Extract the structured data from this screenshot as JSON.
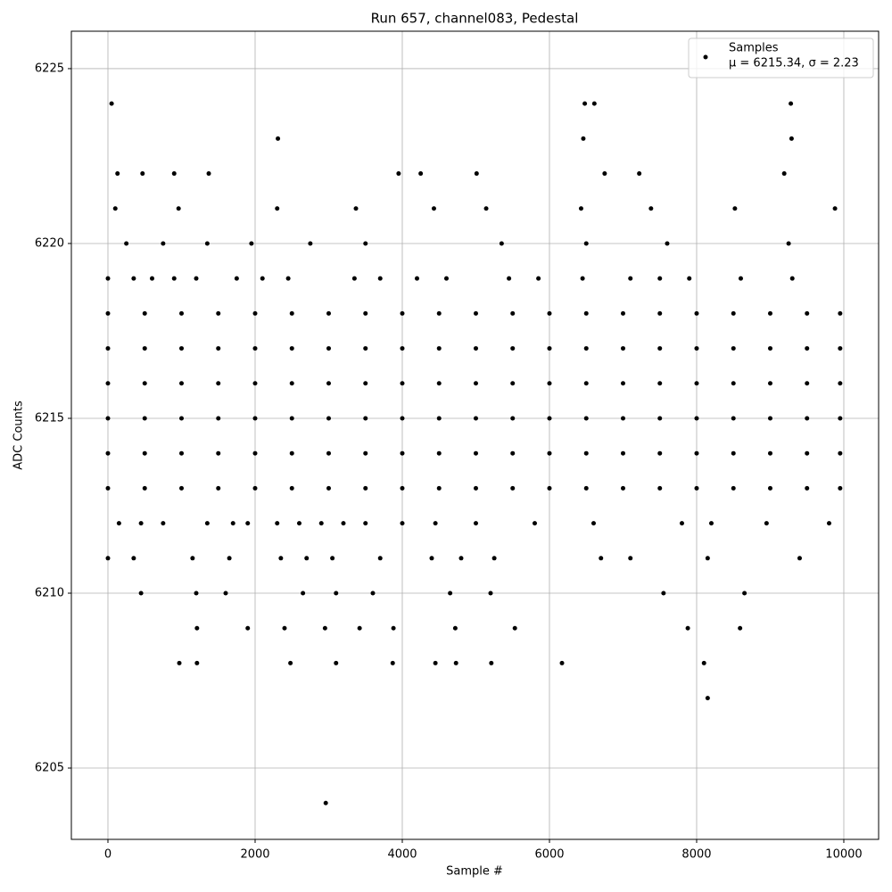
{
  "chart_data": {
    "type": "scatter",
    "title": "Run 657, channel083, Pedestal",
    "x_label": "Sample #",
    "y_label": "ADC Counts",
    "xlim": [
      -497,
      10473
    ],
    "ylim": [
      6202.96,
      6226.07
    ],
    "xticks": [
      0,
      2000,
      4000,
      6000,
      8000,
      10000
    ],
    "yticks": [
      6205,
      6210,
      6215,
      6220,
      6225
    ],
    "grid": true,
    "legend_position": "upper right",
    "series": [
      {
        "name": "Samples",
        "label": "μ = 6215.34, σ = 2.23",
        "color": "#000000",
        "x": [
          0,
          500,
          1000,
          1500,
          2000,
          2500,
          3000,
          3500,
          4000,
          4500,
          5000,
          5500,
          6000,
          6500,
          7000,
          7500,
          8000,
          8500,
          9000,
          9500,
          9950,
          0,
          500,
          1000,
          1500,
          2000,
          2500,
          3000,
          3500,
          4000,
          4500,
          5000,
          5500,
          6000,
          6500,
          7000,
          7500,
          8000,
          8500,
          9000,
          9500,
          9950,
          0,
          500,
          1000,
          1500,
          2000,
          2500,
          3000,
          3500,
          4000,
          4500,
          5000,
          5500,
          6000,
          6500,
          7000,
          7500,
          8000,
          8500,
          9000,
          9500,
          9950,
          0,
          500,
          1000,
          1500,
          2000,
          2500,
          3000,
          3500,
          4000,
          4500,
          5000,
          5500,
          6000,
          6500,
          7000,
          7500,
          8000,
          8500,
          9000,
          9500,
          9950,
          0,
          500,
          1000,
          1500,
          2000,
          2500,
          3000,
          3500,
          4000,
          4500,
          5000,
          5500,
          6000,
          6500,
          7000,
          7500,
          8000,
          8500,
          9000,
          9500,
          9950,
          0,
          500,
          1000,
          1500,
          2000,
          2500,
          3000,
          3500,
          4000,
          4500,
          5000,
          5500,
          6000,
          6500,
          7000,
          7500,
          8000,
          8500,
          9000,
          9500,
          9950,
          130,
          470,
          900,
          1370,
          3950,
          4250,
          5010,
          6750,
          7220,
          9190,
          100,
          960,
          2300,
          3370,
          4430,
          5140,
          6430,
          7380,
          8520,
          9880,
          250,
          750,
          1350,
          1950,
          2750,
          3500,
          5350,
          6500,
          7600,
          9250,
          0,
          350,
          600,
          900,
          1200,
          1750,
          2100,
          2450,
          3350,
          3700,
          4200,
          4600,
          5450,
          5850,
          6450,
          7100,
          7500,
          7900,
          8600,
          9300,
          150,
          450,
          750,
          1350,
          1700,
          1900,
          2300,
          2600,
          2900,
          3200,
          3500,
          4000,
          4450,
          5000,
          5800,
          6600,
          7800,
          8200,
          8950,
          9800,
          0,
          350,
          1150,
          1650,
          2350,
          2700,
          3050,
          3700,
          4400,
          4800,
          5250,
          6700,
          7100,
          8150,
          9400,
          450,
          1200,
          1600,
          2650,
          3100,
          3600,
          4650,
          5200,
          7550,
          8650,
          1210,
          1900,
          2400,
          2950,
          3420,
          3880,
          4720,
          5530,
          7880,
          8590,
          970,
          1210,
          2480,
          3100,
          3870,
          4450,
          4730,
          5210,
          6170,
          8100,
          50,
          2310,
          6460,
          6480,
          6610,
          9280,
          9290,
          2960,
          8150
        ],
        "values": [
          6213,
          6213,
          6213,
          6213,
          6213,
          6213,
          6213,
          6213,
          6213,
          6213,
          6213,
          6213,
          6213,
          6213,
          6213,
          6213,
          6213,
          6213,
          6213,
          6213,
          6213,
          6214,
          6214,
          6214,
          6214,
          6214,
          6214,
          6214,
          6214,
          6214,
          6214,
          6214,
          6214,
          6214,
          6214,
          6214,
          6214,
          6214,
          6214,
          6214,
          6214,
          6214,
          6215,
          6215,
          6215,
          6215,
          6215,
          6215,
          6215,
          6215,
          6215,
          6215,
          6215,
          6215,
          6215,
          6215,
          6215,
          6215,
          6215,
          6215,
          6215,
          6215,
          6215,
          6216,
          6216,
          6216,
          6216,
          6216,
          6216,
          6216,
          6216,
          6216,
          6216,
          6216,
          6216,
          6216,
          6216,
          6216,
          6216,
          6216,
          6216,
          6216,
          6216,
          6216,
          6217,
          6217,
          6217,
          6217,
          6217,
          6217,
          6217,
          6217,
          6217,
          6217,
          6217,
          6217,
          6217,
          6217,
          6217,
          6217,
          6217,
          6217,
          6217,
          6217,
          6217,
          6218,
          6218,
          6218,
          6218,
          6218,
          6218,
          6218,
          6218,
          6218,
          6218,
          6218,
          6218,
          6218,
          6218,
          6218,
          6218,
          6218,
          6218,
          6218,
          6218,
          6218,
          6222,
          6222,
          6222,
          6222,
          6222,
          6222,
          6222,
          6222,
          6222,
          6222,
          6221,
          6221,
          6221,
          6221,
          6221,
          6221,
          6221,
          6221,
          6221,
          6221,
          6220,
          6220,
          6220,
          6220,
          6220,
          6220,
          6220,
          6220,
          6220,
          6220,
          6219,
          6219,
          6219,
          6219,
          6219,
          6219,
          6219,
          6219,
          6219,
          6219,
          6219,
          6219,
          6219,
          6219,
          6219,
          6219,
          6219,
          6219,
          6219,
          6219,
          6212,
          6212,
          6212,
          6212,
          6212,
          6212,
          6212,
          6212,
          6212,
          6212,
          6212,
          6212,
          6212,
          6212,
          6212,
          6212,
          6212,
          6212,
          6212,
          6212,
          6211,
          6211,
          6211,
          6211,
          6211,
          6211,
          6211,
          6211,
          6211,
          6211,
          6211,
          6211,
          6211,
          6211,
          6211,
          6210,
          6210,
          6210,
          6210,
          6210,
          6210,
          6210,
          6210,
          6210,
          6210,
          6209,
          6209,
          6209,
          6209,
          6209,
          6209,
          6209,
          6209,
          6209,
          6209,
          6208,
          6208,
          6208,
          6208,
          6208,
          6208,
          6208,
          6208,
          6208,
          6208,
          6224,
          6223,
          6223,
          6224,
          6224,
          6224,
          6223,
          6204,
          6207
        ]
      }
    ]
  }
}
